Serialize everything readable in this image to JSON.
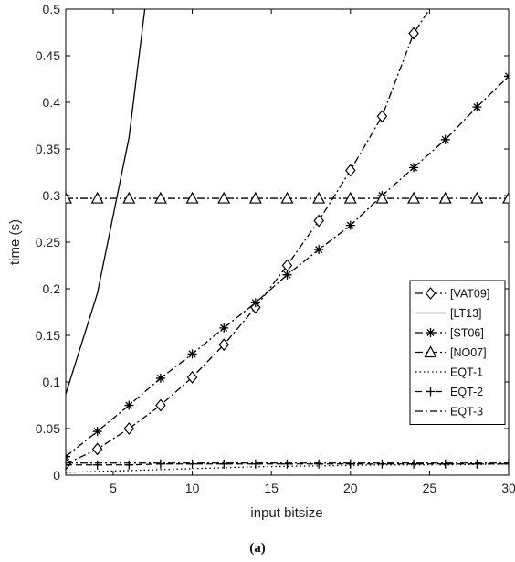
{
  "caption": "(a)",
  "chart_data": {
    "type": "line",
    "xlabel": "input bitsize",
    "ylabel": "time (s)",
    "xlim": [
      2,
      30
    ],
    "ylim": [
      0,
      0.5
    ],
    "xticks": [
      5,
      10,
      15,
      20,
      25,
      30
    ],
    "yticks": [
      0,
      0.05,
      0.1,
      0.15,
      0.2,
      0.25,
      0.3,
      0.35,
      0.4,
      0.45,
      0.5
    ],
    "ytick_labels": [
      "0",
      "0.05",
      "0.1",
      "0.15",
      "0.2",
      "0.25",
      "0.3",
      "0.35",
      "0.4",
      "0.45",
      "0.5"
    ],
    "grid": false,
    "legend_position": "lower-right",
    "series": [
      {
        "name": "[VAT09]",
        "line": "dashdot",
        "marker": "diamond",
        "x": [
          2,
          4,
          6,
          8,
          10,
          12,
          14,
          16,
          18,
          20,
          22,
          24,
          25
        ],
        "y": [
          0.012,
          0.028,
          0.05,
          0.075,
          0.105,
          0.14,
          0.18,
          0.225,
          0.273,
          0.327,
          0.385,
          0.474,
          0.5
        ]
      },
      {
        "name": "[LT13]",
        "line": "solid",
        "marker": "none",
        "x": [
          2,
          4,
          6,
          7
        ],
        "y": [
          0.087,
          0.195,
          0.362,
          0.5
        ]
      },
      {
        "name": "[ST06]",
        "line": "dashdot",
        "marker": "asterisk",
        "x": [
          2,
          4,
          6,
          8,
          10,
          12,
          14,
          16,
          18,
          20,
          22,
          24,
          26,
          28,
          30
        ],
        "y": [
          0.02,
          0.047,
          0.075,
          0.104,
          0.13,
          0.158,
          0.185,
          0.215,
          0.242,
          0.268,
          0.3,
          0.33,
          0.36,
          0.395,
          0.428
        ]
      },
      {
        "name": "[NO07]",
        "line": "dashdot",
        "marker": "triangle",
        "x": [
          2,
          4,
          6,
          8,
          10,
          12,
          14,
          16,
          18,
          20,
          22,
          24,
          26,
          28,
          30
        ],
        "y": [
          0.297,
          0.297,
          0.297,
          0.297,
          0.297,
          0.297,
          0.297,
          0.297,
          0.297,
          0.297,
          0.297,
          0.297,
          0.297,
          0.297,
          0.297
        ]
      },
      {
        "name": "EQT-1",
        "line": "dotted",
        "marker": "none",
        "x": [
          2,
          6,
          10,
          14,
          18,
          22,
          26,
          30
        ],
        "y": [
          0.003,
          0.005,
          0.007,
          0.009,
          0.01,
          0.011,
          0.011,
          0.012
        ]
      },
      {
        "name": "EQT-2",
        "line": "dashed",
        "marker": "plus",
        "x": [
          2,
          4,
          6,
          8,
          10,
          12,
          14,
          16,
          18,
          20,
          22,
          24,
          26,
          28,
          30
        ],
        "y": [
          0.011,
          0.011,
          0.011,
          0.012,
          0.012,
          0.012,
          0.012,
          0.012,
          0.012,
          0.012,
          0.012,
          0.012,
          0.012,
          0.012,
          0.012
        ]
      },
      {
        "name": "EQT-3",
        "line": "dashdot",
        "marker": "none",
        "x": [
          2,
          6,
          10,
          14,
          18,
          22,
          26,
          30
        ],
        "y": [
          0.013,
          0.013,
          0.013,
          0.013,
          0.013,
          0.013,
          0.013,
          0.013
        ]
      }
    ]
  }
}
